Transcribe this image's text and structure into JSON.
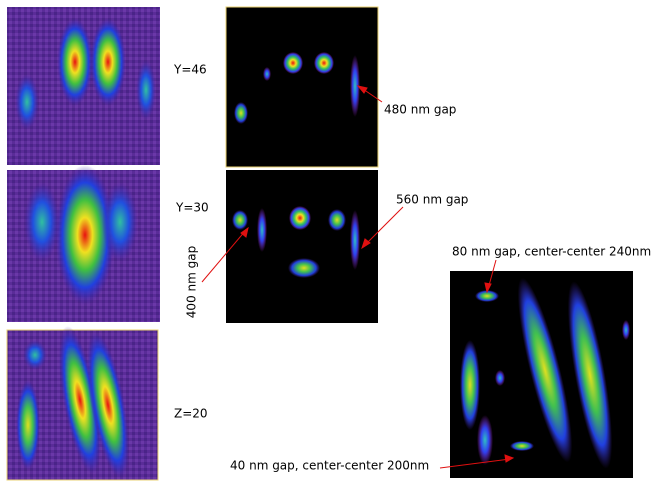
{
  "labels": {
    "y46": "Y=46",
    "y30": "Y=30",
    "z20": "Z=20"
  },
  "annotations": {
    "gap480": "480 nm gap",
    "gap560": "560 nm gap",
    "gap400": "400 nm gap",
    "gap80": "80 nm gap, center-center 240nm",
    "gap40": "40 nm gap, center-center 200nm"
  }
}
